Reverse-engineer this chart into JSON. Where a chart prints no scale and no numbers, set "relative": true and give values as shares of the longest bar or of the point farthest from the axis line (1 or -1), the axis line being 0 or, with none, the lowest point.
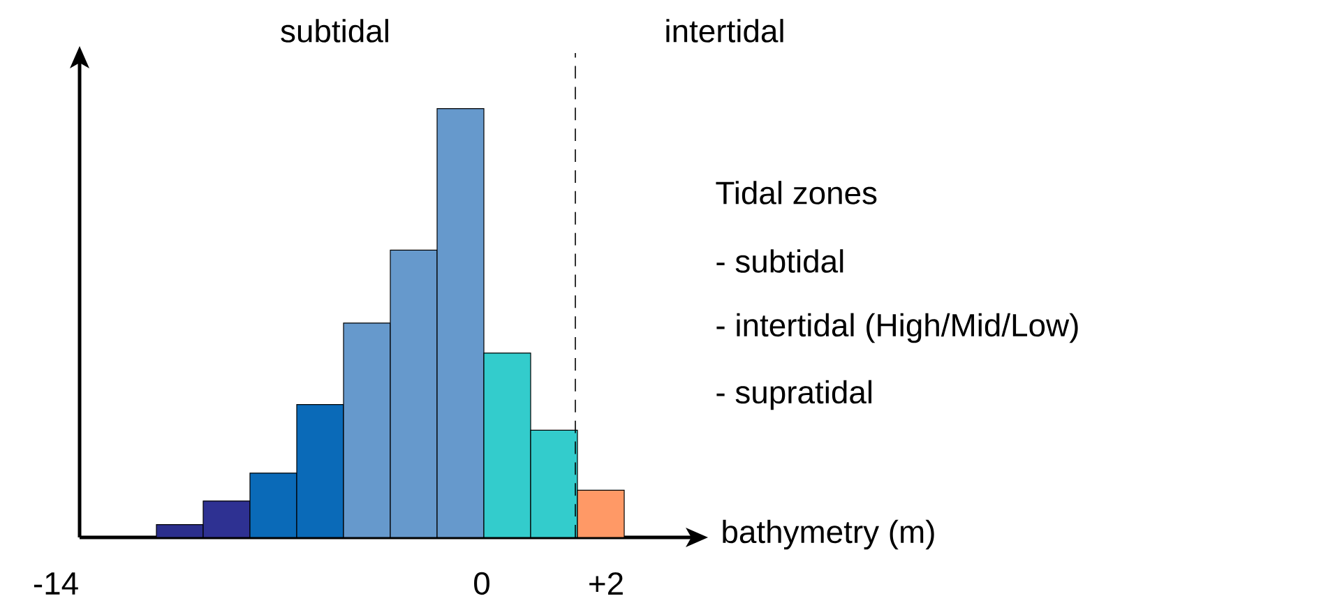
{
  "chart_data": {
    "type": "bar",
    "relative": true,
    "categories": [
      null,
      null,
      null,
      null,
      null,
      null,
      null,
      null,
      null,
      null
    ],
    "values": [
      0.03,
      0.085,
      0.15,
      0.31,
      0.5,
      0.67,
      1.0,
      0.43,
      0.25,
      0.11
    ],
    "colors": [
      "#2b2e8c",
      "#2e3192",
      "#0a6ab8",
      "#0a6ab8",
      "#6699cc",
      "#6699cc",
      "#6699cc",
      "#33cccc",
      "#33cccc",
      "#ff9966"
    ],
    "xlabel": "bathymetry (m)",
    "annotations": [
      "subtidal",
      "intertidal",
      "Tidal zones",
      "- subtidal",
      "- intertidal (High/Mid/Low)",
      "- supratidal",
      "-14",
      "0",
      "+2"
    ]
  }
}
